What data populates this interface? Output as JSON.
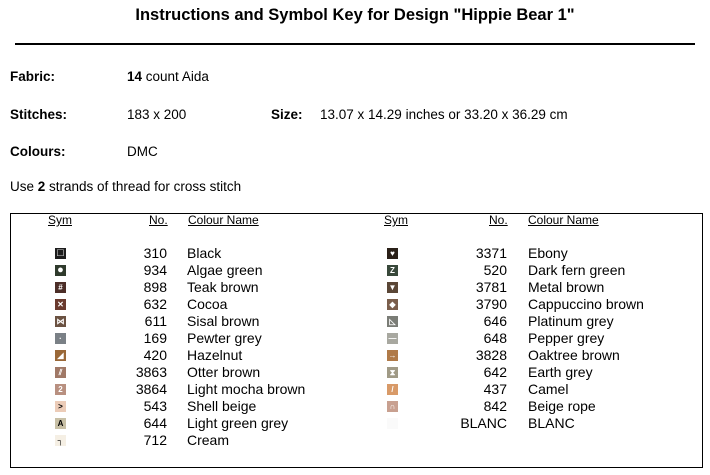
{
  "title": "Instructions and Symbol Key for Design \"Hippie Bear 1\"",
  "fabric": {
    "label": "Fabric:",
    "count": "14",
    "rest": " count Aida"
  },
  "stitches": {
    "label": "Stitches:",
    "value": "183 x 200"
  },
  "size": {
    "label": "Size:",
    "value": "13.07 x 14.29 inches or 33.20 x 36.29 cm"
  },
  "colours": {
    "label": "Colours:",
    "value": "DMC"
  },
  "strands": {
    "pre": "Use ",
    "num": "2",
    "post": " strands of thread for cross stitch"
  },
  "headers": {
    "sym": "Sym",
    "no": "No.",
    "name": "Colour Name"
  },
  "left": [
    {
      "sym": "□",
      "no": "310",
      "name": "Black",
      "color": "#1c1c1c"
    },
    {
      "sym": "●",
      "no": "934",
      "name": "Algae green",
      "color": "#2f3a2c"
    },
    {
      "sym": "#",
      "no": "898",
      "name": "Teak brown",
      "color": "#4c2e28"
    },
    {
      "sym": "✕",
      "no": "632",
      "name": "Cocoa",
      "color": "#6a3a2e"
    },
    {
      "sym": "⋈",
      "no": "611",
      "name": "Sisal brown",
      "color": "#6b5242"
    },
    {
      "sym": "·",
      "no": "169",
      "name": "Pewter grey",
      "color": "#7a8086"
    },
    {
      "sym": "◢",
      "no": "420",
      "name": "Hazelnut",
      "color": "#9a6838"
    },
    {
      "sym": "⫽",
      "no": "3863",
      "name": "Otter brown",
      "color": "#a07866"
    },
    {
      "sym": "2",
      "no": "3864",
      "name": "Light mocha brown",
      "color": "#b89080"
    },
    {
      "sym": ">",
      "no": "543",
      "name": "Shell beige",
      "color": "#ecccb8"
    },
    {
      "sym": "A",
      "no": "644",
      "name": "Light green grey",
      "color": "#c8c0a6"
    },
    {
      "sym": "┐",
      "no": "712",
      "name": "Cream",
      "color": "#f5efe4"
    }
  ],
  "right": [
    {
      "sym": "♥",
      "no": "3371",
      "name": "Ebony",
      "color": "#2a2018"
    },
    {
      "sym": "Z",
      "no": "520",
      "name": "Dark fern green",
      "color": "#38483a"
    },
    {
      "sym": "▼",
      "no": "3781",
      "name": "Metal brown",
      "color": "#5a4636"
    },
    {
      "sym": "◆",
      "no": "3790",
      "name": "Cappuccino brown",
      "color": "#7a5e4c"
    },
    {
      "sym": "◺",
      "no": "646",
      "name": "Platinum grey",
      "color": "#7a7c76"
    },
    {
      "sym": "—",
      "no": "648",
      "name": "Pepper grey",
      "color": "#a8a8a0"
    },
    {
      "sym": "→",
      "no": "3828",
      "name": "Oaktree brown",
      "color": "#b07a48"
    },
    {
      "sym": "⧗",
      "no": "642",
      "name": "Earth grey",
      "color": "#a09a86"
    },
    {
      "sym": "/",
      "no": "437",
      "name": "Camel",
      "color": "#d89a68"
    },
    {
      "sym": "∩",
      "no": "842",
      "name": "Beige rope",
      "color": "#c8a090"
    },
    {
      "sym": "",
      "no": "BLANC",
      "name": "BLANC",
      "color": "#fafafa"
    }
  ]
}
